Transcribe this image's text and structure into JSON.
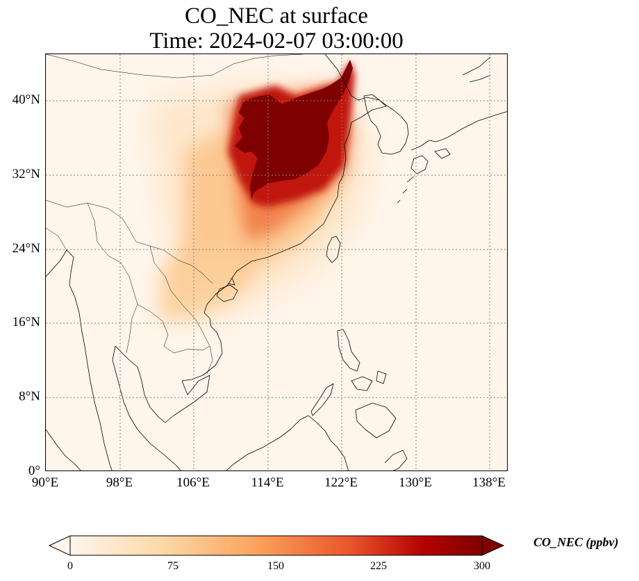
{
  "title": {
    "line1": "CO_NEC at surface",
    "line2": "Time: 2024-02-07 03:00:00"
  },
  "map": {
    "lon_range": [
      90,
      140
    ],
    "lat_range": [
      0,
      45
    ],
    "gridlines": true,
    "gridline_style": "dotted",
    "gridline_color": "#7f7f7f",
    "coastline_color": "#000000",
    "colormap": "OrRd",
    "x_tick_labels": [
      "90°E",
      "98°E",
      "106°E",
      "114°E",
      "122°E",
      "130°E",
      "138°E"
    ],
    "x_tick_values": [
      90,
      98,
      106,
      114,
      122,
      130,
      138
    ],
    "y_tick_labels": [
      "0°",
      "8°N",
      "16°N",
      "24°N",
      "32°N",
      "40°N"
    ],
    "y_tick_values": [
      0,
      8,
      16,
      24,
      32,
      40
    ],
    "plume_hotspot": "North China Plain (peak above 300 ppbv)"
  },
  "colorbar": {
    "label": "CO_NEC (ppbv)",
    "range": [
      0,
      300
    ],
    "extend": "both",
    "tick_labels": [
      "0",
      "75",
      "150",
      "225",
      "300"
    ],
    "tick_values": [
      0,
      75,
      150,
      225,
      300
    ],
    "colors": [
      "#fff5eb",
      "#fdd9a8",
      "#fca35d",
      "#e9552a",
      "#b30000",
      "#7f0000"
    ]
  }
}
